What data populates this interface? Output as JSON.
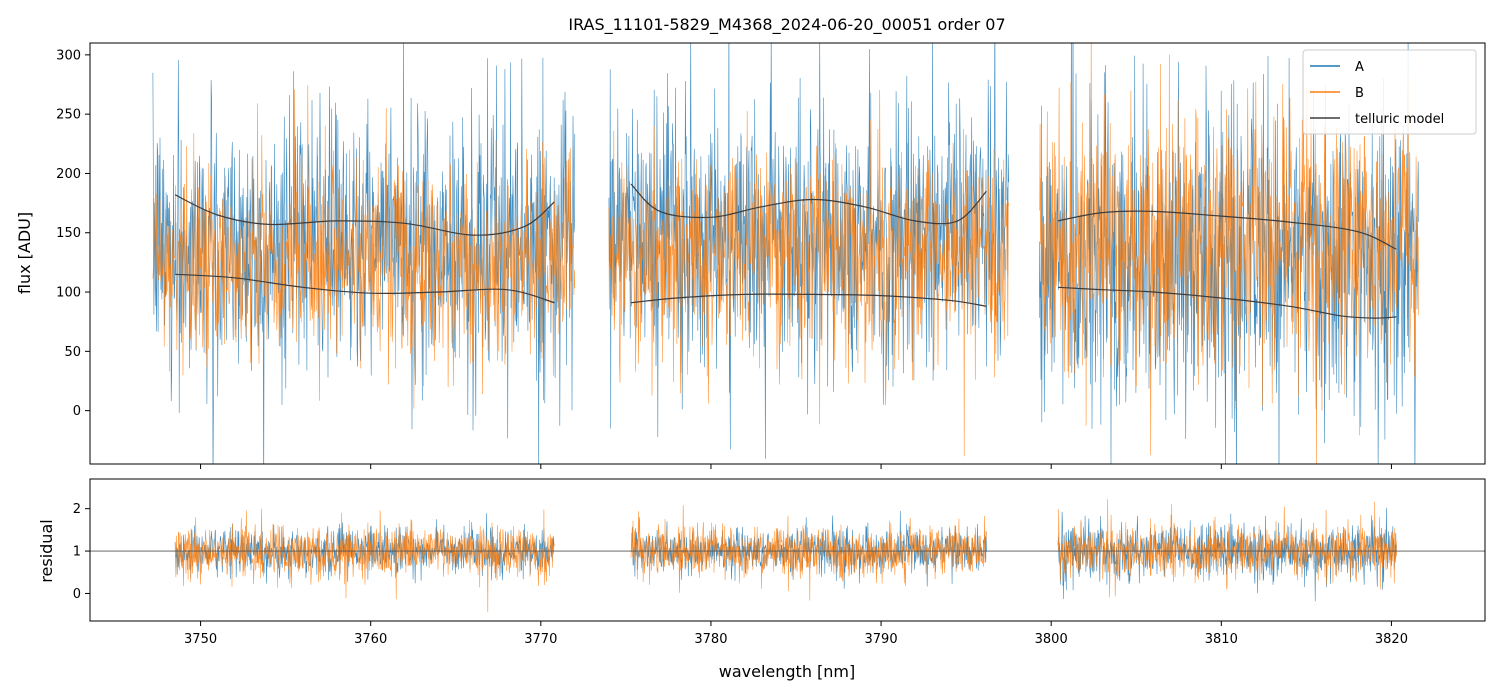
{
  "chart_data": [
    {
      "type": "line",
      "panel": "spectrum",
      "title": "IRAS_11101-5829_M4368_2024-06-20_00051  order 07",
      "xlabel": "",
      "ylabel": "flux [ADU]",
      "xlim": [
        3743.5,
        3825.5
      ],
      "ylim": [
        -45,
        310
      ],
      "yticks": [
        0,
        50,
        100,
        150,
        200,
        250,
        300
      ],
      "yticklabels": [
        "0",
        "50",
        "100",
        "150",
        "200",
        "250",
        "300"
      ],
      "xticks": [
        3750,
        3760,
        3770,
        3780,
        3790,
        3800,
        3810,
        3820
      ],
      "legend": {
        "placement": "top-right",
        "entries": [
          "A",
          "B",
          "telluric model"
        ]
      },
      "segments": [
        {
          "x_range": [
            3747.2,
            3772.0
          ],
          "A_level": 140,
          "A_spread": 95,
          "B_level": 125,
          "B_spread": 75
        },
        {
          "x_range": [
            3774.0,
            3797.5
          ],
          "A_level": 150,
          "A_spread": 100,
          "B_level": 130,
          "B_spread": 75
        },
        {
          "x_range": [
            3799.3,
            3821.6
          ],
          "A_level": 125,
          "A_spread": 110,
          "B_level": 140,
          "B_spread": 95
        }
      ],
      "series": [
        {
          "name": "A",
          "color": "#1f77b4",
          "description": "noisy spectrum, fiber A"
        },
        {
          "name": "B",
          "color": "#ff7f0e",
          "description": "noisy spectrum, fiber B"
        },
        {
          "name": "telluric model",
          "color": "#3d3d3d",
          "curves": [
            {
              "x": [
                3748.5,
                3751,
                3754,
                3758,
                3762,
                3766,
                3769,
                3770.8
              ],
              "y": [
                182,
                165,
                157,
                160,
                158,
                148,
                155,
                176
              ]
            },
            {
              "x": [
                3748.5,
                3752,
                3756,
                3760,
                3764,
                3768,
                3770.8
              ],
              "y": [
                115,
                112,
                104,
                99,
                100,
                102,
                91
              ]
            },
            {
              "x": [
                3775.3,
                3777,
                3780,
                3783,
                3786,
                3789,
                3792,
                3794.5,
                3796.2
              ],
              "y": [
                191,
                168,
                163,
                172,
                178,
                172,
                160,
                160,
                185
              ]
            },
            {
              "x": [
                3775.3,
                3778,
                3782,
                3786,
                3790,
                3794,
                3796.2
              ],
              "y": [
                91,
                95,
                98,
                98,
                97,
                93,
                88
              ]
            },
            {
              "x": [
                3800.4,
                3803,
                3806,
                3810,
                3814,
                3818,
                3820.3
              ],
              "y": [
                160,
                167,
                168,
                164,
                159,
                151,
                136
              ]
            },
            {
              "x": [
                3800.4,
                3803,
                3806,
                3810,
                3814,
                3817,
                3819,
                3820.3
              ],
              "y": [
                104,
                102,
                100,
                95,
                88,
                80,
                78,
                79
              ]
            }
          ]
        }
      ]
    },
    {
      "type": "line",
      "panel": "residual",
      "xlabel": "wavelength [nm]",
      "ylabel": "residual",
      "xlim": [
        3743.5,
        3825.5
      ],
      "ylim": [
        -0.65,
        2.7
      ],
      "yticks": [
        0,
        1,
        2
      ],
      "yticklabels": [
        "0",
        "1",
        "2"
      ],
      "xticks": [
        3750,
        3760,
        3770,
        3780,
        3790,
        3800,
        3810,
        3820
      ],
      "xticklabels": [
        "3750",
        "3760",
        "3770",
        "3780",
        "3790",
        "3800",
        "3810",
        "3820"
      ],
      "reference_line": 1,
      "segments": [
        {
          "x_range": [
            3748.5,
            3770.8
          ],
          "A_spread": 0.45,
          "B_spread": 0.55
        },
        {
          "x_range": [
            3775.3,
            3796.2
          ],
          "A_spread": 0.45,
          "B_spread": 0.55
        },
        {
          "x_range": [
            3800.4,
            3820.3
          ],
          "A_spread": 0.6,
          "B_spread": 0.55
        }
      ],
      "series": [
        {
          "name": "A",
          "color": "#1f77b4"
        },
        {
          "name": "B",
          "color": "#ff7f0e"
        }
      ]
    }
  ]
}
